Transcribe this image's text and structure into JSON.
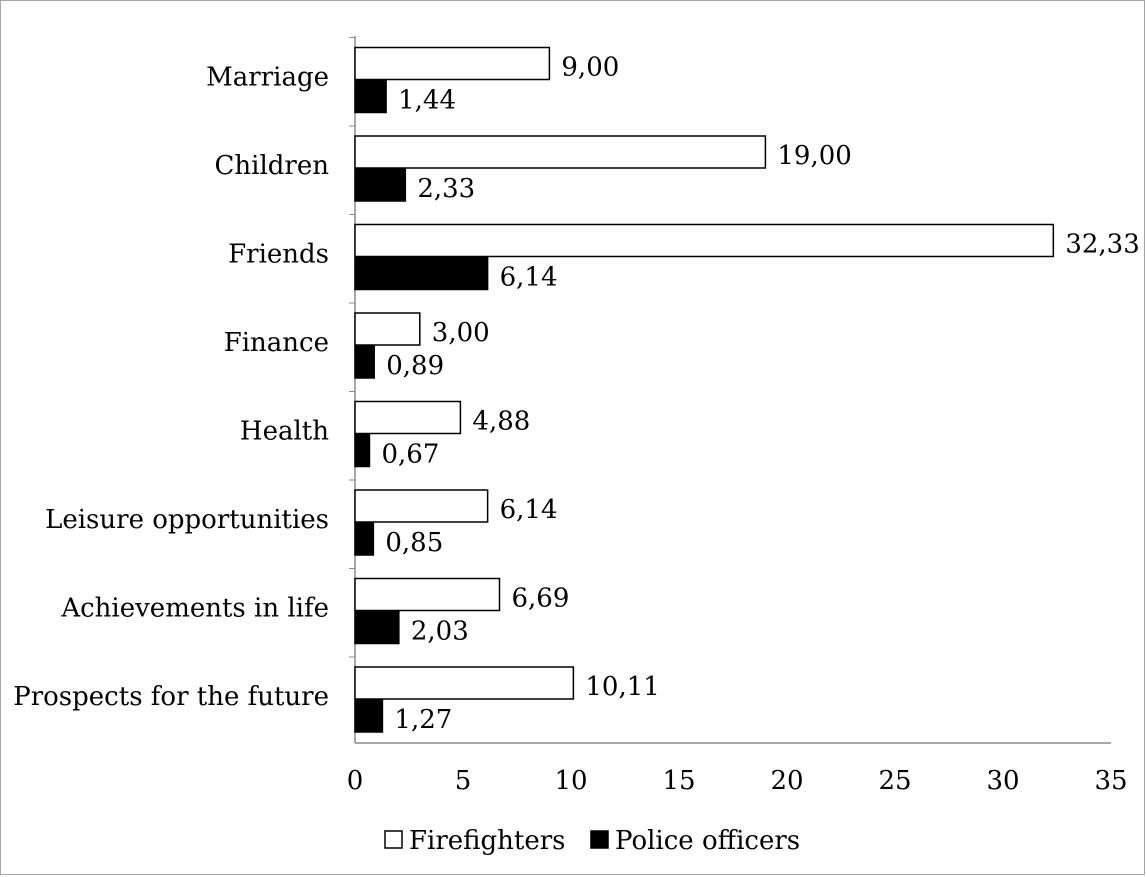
{
  "chart_data": {
    "type": "bar",
    "orientation": "horizontal",
    "categories": [
      "Marriage",
      "Children",
      "Friends",
      "Finance",
      "Health",
      "Leisure opportunities",
      "Achievements in life",
      "Prospects for the future"
    ],
    "series": [
      {
        "name": "Firefighters",
        "color": "#ffffff",
        "values": [
          9.0,
          19.0,
          32.33,
          3.0,
          4.88,
          6.14,
          6.69,
          10.11
        ],
        "labels": [
          "9,00",
          "19,00",
          "32,33",
          "3,00",
          "4,88",
          "6,14",
          "6,69",
          "10,11"
        ]
      },
      {
        "name": "Police officers",
        "color": "#000000",
        "values": [
          1.44,
          2.33,
          6.14,
          0.89,
          0.67,
          0.85,
          2.03,
          1.27
        ],
        "labels": [
          "1,44",
          "2,33",
          "6,14",
          "0,89",
          "0,67",
          "0,85",
          "2,03",
          "1,27"
        ]
      }
    ],
    "xlim": [
      0,
      35
    ],
    "xticks": [
      0,
      5,
      10,
      15,
      20,
      25,
      30,
      35
    ],
    "title": "",
    "xlabel": "",
    "ylabel": "",
    "grid": false,
    "legend": {
      "position": "bottom",
      "entries": [
        {
          "symbol": "□",
          "label": "Firefighters"
        },
        {
          "symbol": "■",
          "label": "Police officers"
        }
      ]
    }
  }
}
